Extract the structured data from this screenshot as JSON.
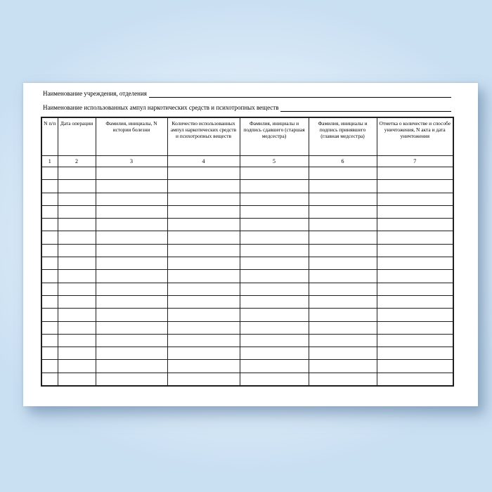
{
  "document": {
    "line1_label": "Наименование учреждения, отделения",
    "line2_label": "Наименование использованных ампул наркотических средств  и  психотропных веществ"
  },
  "table": {
    "headers": [
      "N п/п",
      "Дата операции",
      "Фамилия, инициалы, N истории болезни",
      "Количество использованных ампул наркотических средств и психотропных веществ",
      "Фамилия, инициалы и подпись сдавшего (старшая медсестра)",
      "Фамилия, инициалы и подпись принявшего (главная медсестра)",
      "Отметка о количестве и способе уничтожения, N акта и дата уничтожения"
    ],
    "column_numbers": [
      "1",
      "2",
      "3",
      "4",
      "5",
      "6",
      "7"
    ],
    "empty_row_count": 17
  },
  "colors": {
    "canvas_center": "#f6fbfe",
    "canvas_edge": "#c9dff2",
    "page_background": "#ffffff",
    "table_border": "#1f1f1f",
    "text": "#000000"
  }
}
